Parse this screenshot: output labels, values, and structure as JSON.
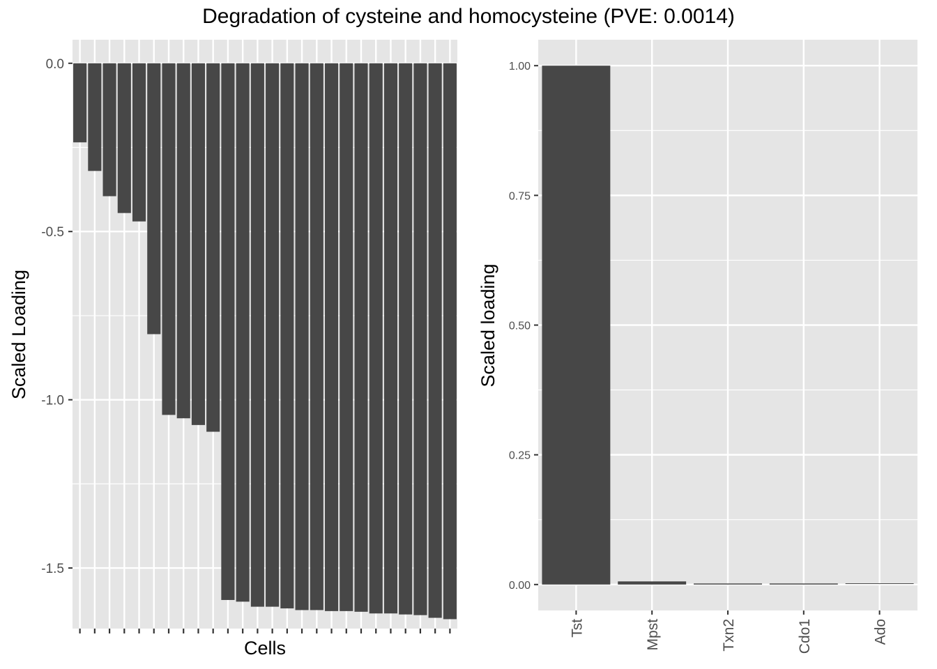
{
  "title": "Degradation of cysteine and homocysteine (PVE: 0.0014)",
  "colors": {
    "panel_bg": "#e5e5e5",
    "grid": "#ffffff",
    "bar": "#474747",
    "tick_text": "#4d4d4d"
  },
  "chart_data": [
    {
      "type": "bar",
      "xlabel": "Cells",
      "ylabel": "Scaled Loading",
      "ylim": [
        -1.68,
        0.07
      ],
      "yticks": [
        0.0,
        -0.5,
        -1.0,
        -1.5
      ],
      "ytick_labels": [
        "0.0",
        "-0.5",
        "-1.0",
        "-1.5"
      ],
      "x_tick_labels_shown": false,
      "grid": true,
      "values": [
        -0.235,
        -0.32,
        -0.395,
        -0.445,
        -0.47,
        -0.805,
        -1.045,
        -1.055,
        -1.075,
        -1.095,
        -1.595,
        -1.6,
        -1.615,
        -1.615,
        -1.62,
        -1.625,
        -1.625,
        -1.628,
        -1.628,
        -1.63,
        -1.635,
        -1.635,
        -1.638,
        -1.64,
        -1.648,
        -1.652
      ]
    },
    {
      "type": "bar",
      "xlabel": "",
      "ylabel": "Scaled loading",
      "ylim": [
        -0.05,
        1.05
      ],
      "yticks": [
        0.0,
        0.25,
        0.5,
        0.75,
        1.0
      ],
      "ytick_labels": [
        "0.00",
        "0.25",
        "0.50",
        "0.75",
        "1.00"
      ],
      "categories": [
        "Tst",
        "Mpst",
        "Txn2",
        "Cdo1",
        "Ado"
      ],
      "values": [
        1.0,
        0.006,
        0.002,
        0.002,
        0.001
      ],
      "grid": true
    }
  ]
}
